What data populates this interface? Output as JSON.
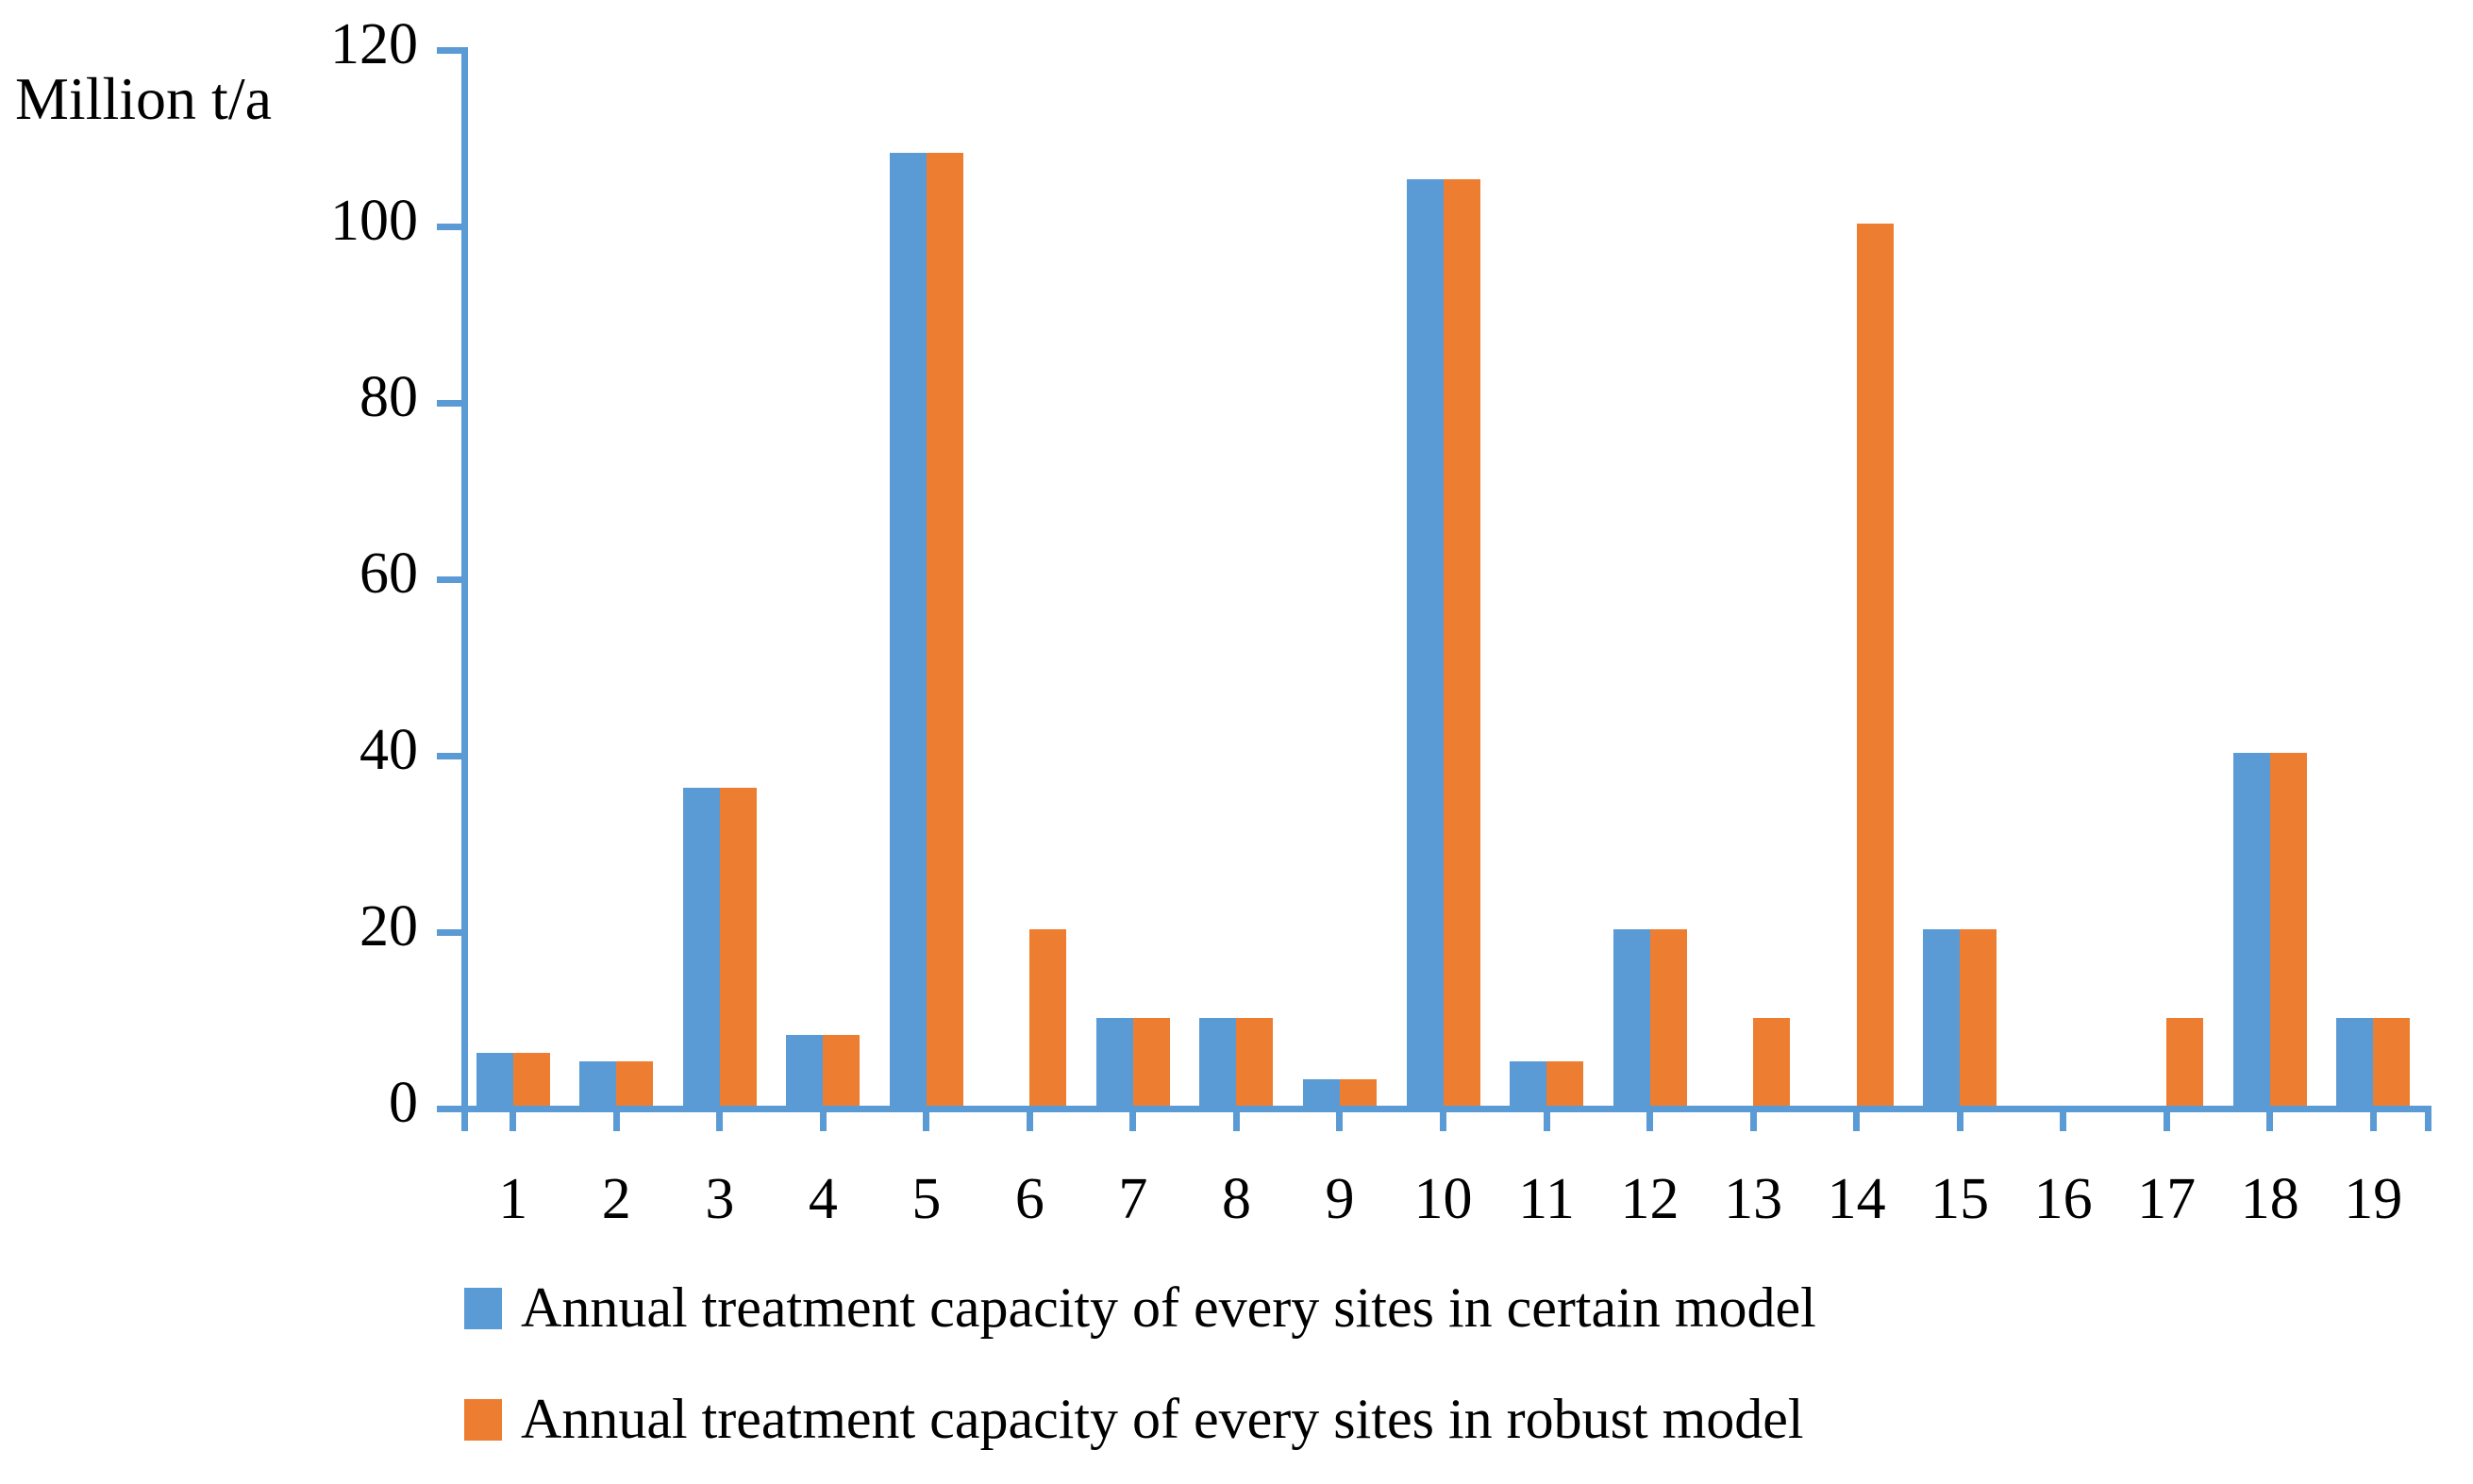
{
  "chart_data": {
    "type": "bar",
    "title": "",
    "ylabel": "Million t/a",
    "xlabel": "",
    "categories": [
      "1",
      "2",
      "3",
      "4",
      "5",
      "6",
      "7",
      "8",
      "9",
      "10",
      "11",
      "12",
      "13",
      "14",
      "15",
      "16",
      "17",
      "18",
      "19"
    ],
    "series": [
      {
        "name": "Annual treatment capacity of every sites in certain model",
        "color": "#5B9BD5",
        "values": [
          6,
          5,
          36,
          8,
          108,
          0,
          10,
          10,
          3,
          105,
          5,
          20,
          0,
          0,
          20,
          0,
          0,
          40,
          10
        ]
      },
      {
        "name": "Annual treatment capacity of every sites in robust model",
        "color": "#ED7D31",
        "values": [
          6,
          5,
          36,
          8,
          108,
          20,
          10,
          10,
          3,
          105,
          5,
          20,
          10,
          100,
          20,
          0,
          10,
          40,
          10
        ]
      }
    ],
    "ylim": [
      0,
      120
    ],
    "yticks": [
      0,
      20,
      40,
      60,
      80,
      100,
      120
    ],
    "grid": false,
    "legend_position": "bottom",
    "axis_color": "#5B9BD5"
  }
}
